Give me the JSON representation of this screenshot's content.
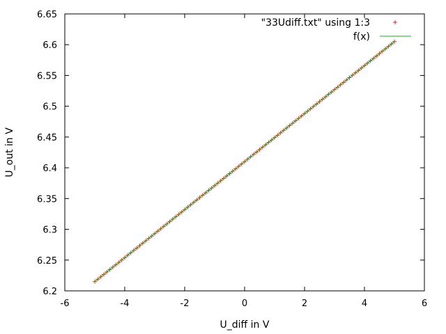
{
  "chart_data": {
    "type": "scatter",
    "xlabel": "U_diff in V",
    "ylabel": "U_out in V",
    "xlim": [
      -6,
      6
    ],
    "ylim": [
      6.2,
      6.65
    ],
    "xticks": [
      "-6",
      "-4",
      "-2",
      "0",
      "2",
      "4",
      "6"
    ],
    "yticks": [
      "6.2",
      "6.25",
      "6.3",
      "6.35",
      "6.4",
      "6.45",
      "6.5",
      "6.55",
      "6.6",
      "6.65"
    ],
    "grid": false,
    "legend_position": "top-right",
    "series": [
      {
        "name": "\"33Udiff.txt\" using 1:3",
        "kind": "points",
        "marker": "+",
        "color": "#c0392b",
        "x_range": [
          -5,
          5
        ],
        "point_count": 101,
        "y_at_x_min": 6.215,
        "y_at_x_max": 6.605
      },
      {
        "name": "f(x)",
        "kind": "line",
        "color": "#22aa22",
        "x_range": [
          -5,
          5
        ],
        "y_at_x_min": 6.215,
        "y_at_x_max": 6.605
      }
    ]
  }
}
